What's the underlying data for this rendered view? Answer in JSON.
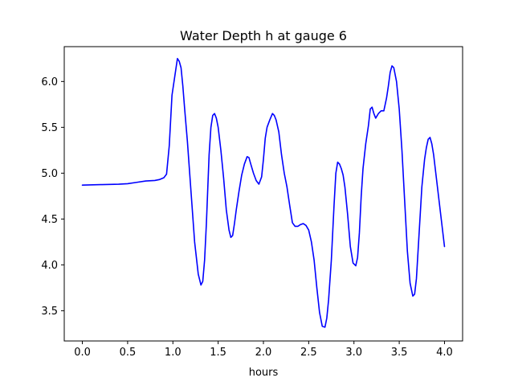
{
  "chart_data": {
    "type": "line",
    "title": "Water Depth h at gauge 6",
    "xlabel": "hours",
    "ylabel": "",
    "xlim": [
      -0.2,
      4.2
    ],
    "ylim": [
      3.17,
      6.38
    ],
    "grid": false,
    "xticks": [
      0.0,
      0.5,
      1.0,
      1.5,
      2.0,
      2.5,
      3.0,
      3.5,
      4.0
    ],
    "xtick_labels": [
      "0.0",
      "0.5",
      "1.0",
      "1.5",
      "2.0",
      "2.5",
      "3.0",
      "3.5",
      "4.0"
    ],
    "yticks": [
      3.5,
      4.0,
      4.5,
      5.0,
      5.5,
      6.0
    ],
    "ytick_labels": [
      "3.5",
      "4.0",
      "4.5",
      "5.0",
      "5.5",
      "6.0"
    ],
    "series": [
      {
        "color": "#0000ff",
        "x": [
          0.0,
          0.2,
          0.4,
          0.5,
          0.6,
          0.7,
          0.8,
          0.85,
          0.9,
          0.93,
          0.96,
          0.99,
          1.02,
          1.05,
          1.07,
          1.09,
          1.11,
          1.13,
          1.16,
          1.2,
          1.24,
          1.28,
          1.31,
          1.33,
          1.35,
          1.37,
          1.4,
          1.42,
          1.44,
          1.46,
          1.48,
          1.5,
          1.53,
          1.56,
          1.59,
          1.62,
          1.64,
          1.66,
          1.68,
          1.7,
          1.73,
          1.76,
          1.79,
          1.82,
          1.84,
          1.86,
          1.89,
          1.92,
          1.95,
          1.98,
          2.0,
          2.02,
          2.04,
          2.07,
          2.1,
          2.12,
          2.14,
          2.17,
          2.2,
          2.23,
          2.26,
          2.29,
          2.32,
          2.35,
          2.38,
          2.41,
          2.44,
          2.47,
          2.5,
          2.53,
          2.56,
          2.59,
          2.62,
          2.65,
          2.68,
          2.7,
          2.72,
          2.75,
          2.78,
          2.8,
          2.82,
          2.84,
          2.86,
          2.88,
          2.9,
          2.93,
          2.96,
          2.99,
          3.02,
          3.04,
          3.06,
          3.08,
          3.1,
          3.13,
          3.16,
          3.18,
          3.2,
          3.22,
          3.24,
          3.27,
          3.3,
          3.33,
          3.36,
          3.38,
          3.4,
          3.42,
          3.44,
          3.47,
          3.5,
          3.53,
          3.56,
          3.59,
          3.62,
          3.65,
          3.67,
          3.69,
          3.72,
          3.75,
          3.78,
          3.8,
          3.82,
          3.84,
          3.86,
          3.88,
          3.91,
          3.94,
          3.97,
          4.0
        ],
        "y": [
          4.87,
          4.875,
          4.88,
          4.885,
          4.9,
          4.915,
          4.92,
          4.93,
          4.95,
          4.99,
          5.3,
          5.85,
          6.05,
          6.25,
          6.22,
          6.15,
          5.95,
          5.7,
          5.35,
          4.8,
          4.25,
          3.9,
          3.78,
          3.82,
          4.05,
          4.45,
          5.2,
          5.5,
          5.63,
          5.65,
          5.6,
          5.5,
          5.25,
          4.95,
          4.6,
          4.38,
          4.3,
          4.32,
          4.45,
          4.6,
          4.8,
          4.98,
          5.1,
          5.18,
          5.17,
          5.1,
          5.0,
          4.92,
          4.88,
          4.96,
          5.15,
          5.38,
          5.5,
          5.58,
          5.65,
          5.63,
          5.58,
          5.45,
          5.2,
          5.0,
          4.85,
          4.65,
          4.46,
          4.42,
          4.42,
          4.44,
          4.45,
          4.43,
          4.38,
          4.25,
          4.05,
          3.75,
          3.48,
          3.33,
          3.32,
          3.42,
          3.62,
          4.05,
          4.65,
          5.0,
          5.12,
          5.1,
          5.05,
          4.98,
          4.85,
          4.55,
          4.2,
          4.02,
          3.99,
          4.08,
          4.35,
          4.75,
          5.05,
          5.32,
          5.52,
          5.7,
          5.72,
          5.65,
          5.6,
          5.65,
          5.68,
          5.68,
          5.82,
          5.95,
          6.1,
          6.17,
          6.15,
          6.0,
          5.7,
          5.25,
          4.7,
          4.15,
          3.8,
          3.66,
          3.68,
          3.85,
          4.35,
          4.85,
          5.15,
          5.28,
          5.37,
          5.39,
          5.32,
          5.2,
          4.95,
          4.7,
          4.45,
          4.2
        ]
      }
    ]
  }
}
